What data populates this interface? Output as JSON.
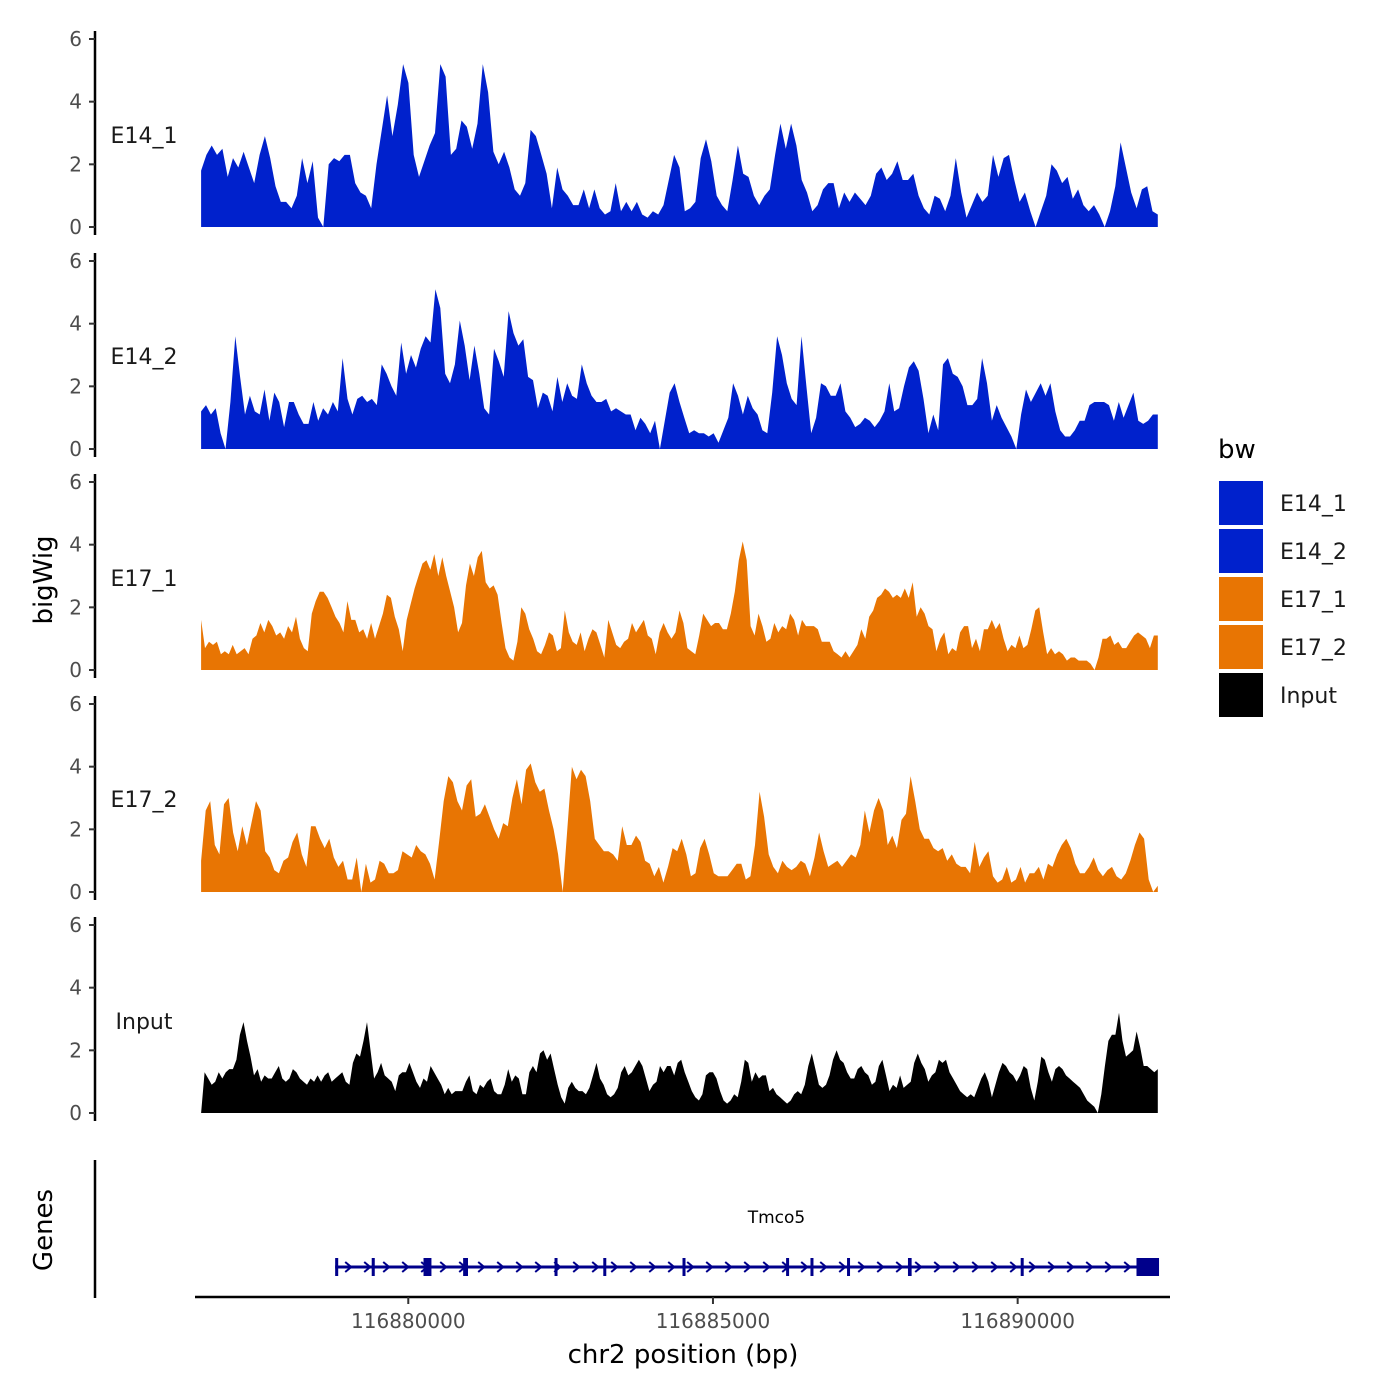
{
  "chart_data": {
    "type": "area",
    "ylabel": "bigWig",
    "xlabel": "chr2 position (bp)",
    "ylim": [
      0,
      6
    ],
    "y_ticks": [
      0,
      2,
      4,
      6
    ],
    "x_range": [
      116876500,
      116892500
    ],
    "x_ticks": [
      {
        "value": 116880000,
        "label": "116880000"
      },
      {
        "value": 116885000,
        "label": "116885000"
      },
      {
        "value": 116890000,
        "label": "116890000"
      }
    ],
    "x_start": 116876600,
    "x_end": 116892300,
    "legend": {
      "title": "bw",
      "position": "right",
      "entries": [
        {
          "label": "E14_1",
          "color": "#0021CC"
        },
        {
          "label": "E14_2",
          "color": "#0021CC"
        },
        {
          "label": "E17_1",
          "color": "#E87503"
        },
        {
          "label": "E17_2",
          "color": "#E87503"
        },
        {
          "label": "Input",
          "color": "#000000"
        }
      ]
    },
    "series": [
      {
        "name": "E14_1",
        "color": "#0021CC",
        "values": [
          1.8,
          2.3,
          2.6,
          2.3,
          2.5,
          1.6,
          2.2,
          1.9,
          2.4,
          1.9,
          1.4,
          2.3,
          2.9,
          2.2,
          1.3,
          0.8,
          0.8,
          0.6,
          1.0,
          2.2,
          1.4,
          2.1,
          0.3,
          0.0,
          2.0,
          2.2,
          2.1,
          2.3,
          2.3,
          1.4,
          1.1,
          1.0,
          0.6,
          2.0,
          3.1,
          4.2,
          2.9,
          3.9,
          5.2,
          4.6,
          2.3,
          1.6,
          2.1,
          2.6,
          3.0,
          5.2,
          4.8,
          2.3,
          2.5,
          3.4,
          3.2,
          2.5,
          3.3,
          5.2,
          4.3,
          2.4,
          2.0,
          2.4,
          1.9,
          1.2,
          1.0,
          1.4,
          3.1,
          2.9,
          2.3,
          1.7,
          0.6,
          1.9,
          1.2,
          1.0,
          0.7,
          0.7,
          1.2,
          0.6,
          1.2,
          0.6,
          0.4,
          0.5,
          1.4,
          0.5,
          0.8,
          0.5,
          0.8,
          0.4,
          0.3,
          0.5,
          0.4,
          0.7,
          1.5,
          2.3,
          1.9,
          0.5,
          0.6,
          0.8,
          2.2,
          2.8,
          2.1,
          1.0,
          0.7,
          0.5,
          1.5,
          2.6,
          1.7,
          1.6,
          1.0,
          0.7,
          1.0,
          1.2,
          2.3,
          3.3,
          2.5,
          3.3,
          2.6,
          1.5,
          1.1,
          0.5,
          0.7,
          1.2,
          1.4,
          1.4,
          0.6,
          1.1,
          0.8,
          1.1,
          0.9,
          0.7,
          1.0,
          1.7,
          1.9,
          1.5,
          1.7,
          2.1,
          1.5,
          1.5,
          1.7,
          1.0,
          0.6,
          0.4,
          1.0,
          0.9,
          0.5,
          1.0,
          2.2,
          1.1,
          0.3,
          0.7,
          1.1,
          0.8,
          1.0,
          2.3,
          1.6,
          2.2,
          2.3,
          1.5,
          0.8,
          1.1,
          0.5,
          0.0,
          0.5,
          1.0,
          2.0,
          1.8,
          1.4,
          1.6,
          0.9,
          1.2,
          0.7,
          0.5,
          0.7,
          0.4,
          0.0,
          0.5,
          1.3,
          2.7,
          1.9,
          1.1,
          0.6,
          1.2,
          1.3,
          0.5,
          0.4
        ]
      },
      {
        "name": "E14_2",
        "color": "#0021CC",
        "values": [
          1.2,
          1.4,
          1.1,
          1.3,
          0.5,
          0.0,
          1.5,
          3.6,
          2.3,
          1.1,
          1.7,
          1.2,
          1.1,
          1.9,
          0.9,
          1.8,
          1.5,
          0.7,
          1.5,
          1.5,
          1.1,
          0.8,
          0.8,
          1.5,
          0.9,
          1.3,
          1.1,
          1.5,
          1.2,
          2.9,
          1.6,
          1.1,
          1.6,
          1.7,
          1.5,
          1.6,
          1.4,
          2.7,
          2.4,
          2.0,
          1.7,
          3.4,
          2.4,
          3.0,
          2.6,
          3.2,
          3.6,
          3.4,
          5.1,
          4.5,
          2.4,
          2.1,
          2.7,
          4.1,
          3.3,
          2.2,
          3.3,
          2.4,
          1.3,
          1.1,
          3.2,
          2.8,
          2.3,
          4.4,
          3.7,
          3.3,
          3.5,
          2.3,
          2.2,
          1.3,
          1.8,
          1.7,
          1.2,
          2.3,
          1.5,
          2.1,
          1.7,
          1.6,
          2.7,
          2.1,
          1.7,
          1.5,
          1.5,
          1.6,
          1.2,
          1.3,
          1.2,
          1.1,
          1.1,
          0.6,
          1.0,
          0.8,
          0.5,
          0.9,
          0.0,
          0.9,
          1.8,
          2.1,
          1.5,
          1.0,
          0.5,
          0.6,
          0.5,
          0.5,
          0.4,
          0.5,
          0.2,
          0.6,
          1.0,
          2.1,
          1.7,
          1.1,
          1.7,
          1.3,
          1.1,
          0.6,
          0.5,
          1.8,
          3.6,
          3.0,
          2.1,
          1.6,
          1.4,
          3.6,
          2.0,
          0.5,
          1.0,
          2.1,
          2.0,
          1.7,
          1.7,
          2.1,
          1.2,
          1.0,
          0.7,
          0.8,
          1.0,
          0.9,
          0.7,
          0.9,
          1.2,
          2.1,
          1.2,
          1.3,
          2.0,
          2.6,
          2.8,
          2.5,
          1.6,
          0.5,
          1.1,
          0.6,
          2.7,
          2.9,
          2.4,
          2.3,
          2.0,
          1.4,
          1.4,
          1.6,
          2.9,
          2.1,
          0.9,
          1.4,
          1.0,
          0.7,
          0.4,
          0.0,
          1.1,
          1.9,
          1.5,
          1.8,
          2.1,
          1.7,
          2.1,
          1.2,
          0.6,
          0.4,
          0.4,
          0.6,
          0.9,
          0.9,
          1.4,
          1.5,
          1.5,
          1.5,
          1.4,
          0.9,
          1.5,
          1.0,
          1.4,
          1.8,
          0.9,
          0.8,
          0.9,
          1.1,
          1.1
        ]
      },
      {
        "name": "E17_1",
        "color": "#E87503",
        "values": [
          1.6,
          0.7,
          0.9,
          0.8,
          0.9,
          0.5,
          0.6,
          0.5,
          0.8,
          0.5,
          0.6,
          0.7,
          0.5,
          1.0,
          1.1,
          1.5,
          1.2,
          1.6,
          1.4,
          1.1,
          1.2,
          1.0,
          1.4,
          1.2,
          1.7,
          1.0,
          0.7,
          0.6,
          1.8,
          2.2,
          2.5,
          2.5,
          2.3,
          2.0,
          1.7,
          1.5,
          1.2,
          2.2,
          1.6,
          1.6,
          1.2,
          1.3,
          1.0,
          1.5,
          1.0,
          1.4,
          1.8,
          2.4,
          2.3,
          1.7,
          1.3,
          0.6,
          1.6,
          2.1,
          2.6,
          3.0,
          3.4,
          3.5,
          3.2,
          3.7,
          3.0,
          3.6,
          3.0,
          2.5,
          2.0,
          1.2,
          1.5,
          2.7,
          3.4,
          3.0,
          3.6,
          3.8,
          2.8,
          2.6,
          2.7,
          2.4,
          1.5,
          0.7,
          0.4,
          0.3,
          0.9,
          2.0,
          1.8,
          1.3,
          1.0,
          0.6,
          0.5,
          0.8,
          1.2,
          1.1,
          0.6,
          0.7,
          1.9,
          1.2,
          0.9,
          0.8,
          1.2,
          0.6,
          1.0,
          1.3,
          1.2,
          0.8,
          0.4,
          1.6,
          1.2,
          0.8,
          0.7,
          0.9,
          1.0,
          1.5,
          1.2,
          1.4,
          1.6,
          1.1,
          1.0,
          0.5,
          1.2,
          1.5,
          1.2,
          1.0,
          1.2,
          1.9,
          1.5,
          0.7,
          0.6,
          0.5,
          1.1,
          1.8,
          1.6,
          1.4,
          1.5,
          1.5,
          1.3,
          1.3,
          1.8,
          2.5,
          3.5,
          4.1,
          3.5,
          1.4,
          1.1,
          1.8,
          1.4,
          0.9,
          1.0,
          1.5,
          1.2,
          1.4,
          1.3,
          1.8,
          1.6,
          1.1,
          1.6,
          1.4,
          1.4,
          1.4,
          1.3,
          0.9,
          0.9,
          0.9,
          0.6,
          0.5,
          0.4,
          0.6,
          0.4,
          0.6,
          0.8,
          1.3,
          1.0,
          1.7,
          1.9,
          2.3,
          2.4,
          2.6,
          2.5,
          2.3,
          2.4,
          2.3,
          2.6,
          2.3,
          2.8,
          1.7,
          2.0,
          1.8,
          1.4,
          1.3,
          0.6,
          1.0,
          1.2,
          0.5,
          0.7,
          0.6,
          1.2,
          1.4,
          1.4,
          0.7,
          1.0,
          0.6,
          1.3,
          1.3,
          1.6,
          1.3,
          1.5,
          1.0,
          0.6,
          0.8,
          0.7,
          1.1,
          0.7,
          0.8,
          1.3,
          1.9,
          2.0,
          1.2,
          0.5,
          0.7,
          0.5,
          0.6,
          0.5,
          0.3,
          0.4,
          0.4,
          0.3,
          0.3,
          0.3,
          0.2,
          0.0,
          0.4,
          1.0,
          1.0,
          1.1,
          0.8,
          0.9,
          0.7,
          0.7,
          0.9,
          1.1,
          1.2,
          1.1,
          1.0,
          0.7,
          1.1,
          1.1
        ]
      },
      {
        "name": "E17_2",
        "color": "#E87503",
        "values": [
          1.0,
          2.6,
          2.9,
          1.5,
          1.2,
          2.8,
          3.0,
          1.9,
          1.3,
          2.1,
          1.5,
          2.2,
          2.9,
          2.6,
          1.3,
          1.1,
          0.7,
          0.6,
          1.0,
          1.1,
          1.6,
          1.9,
          1.2,
          0.8,
          2.1,
          2.1,
          1.7,
          1.4,
          1.7,
          1.1,
          0.8,
          1.0,
          0.4,
          0.4,
          1.1,
          0.0,
          0.9,
          0.3,
          0.4,
          1.0,
          0.9,
          0.6,
          0.6,
          0.7,
          1.3,
          1.2,
          1.1,
          1.5,
          1.3,
          1.2,
          0.9,
          0.4,
          1.6,
          2.9,
          3.7,
          3.5,
          2.9,
          2.6,
          3.4,
          3.6,
          2.4,
          2.5,
          2.8,
          2.4,
          2.0,
          1.7,
          2.2,
          2.1,
          3.0,
          3.6,
          2.8,
          3.9,
          4.1,
          3.5,
          3.2,
          3.3,
          2.6,
          2.0,
          1.2,
          0.0,
          2.0,
          4.0,
          3.6,
          3.9,
          3.7,
          2.9,
          1.7,
          1.5,
          1.3,
          1.3,
          1.2,
          1.0,
          2.1,
          1.5,
          1.5,
          1.8,
          1.6,
          1.0,
          0.9,
          0.5,
          0.8,
          0.3,
          0.8,
          1.4,
          1.3,
          1.7,
          1.2,
          0.5,
          0.6,
          1.4,
          1.7,
          1.2,
          0.6,
          0.5,
          0.5,
          0.5,
          0.7,
          0.9,
          0.9,
          0.4,
          0.5,
          1.5,
          3.2,
          2.4,
          1.2,
          0.8,
          0.6,
          1.0,
          0.8,
          0.7,
          0.8,
          1.0,
          0.9,
          0.5,
          1.1,
          1.9,
          1.3,
          0.8,
          0.9,
          1.0,
          0.8,
          1.0,
          1.2,
          1.1,
          1.5,
          2.6,
          1.9,
          2.6,
          3.0,
          2.6,
          1.5,
          1.8,
          1.4,
          2.3,
          2.5,
          3.7,
          2.9,
          2.0,
          1.7,
          1.7,
          1.4,
          1.3,
          1.4,
          1.0,
          1.2,
          0.9,
          0.8,
          0.8,
          0.6,
          1.6,
          0.8,
          1.1,
          1.3,
          0.5,
          0.3,
          0.4,
          0.8,
          0.3,
          0.4,
          0.8,
          0.3,
          0.6,
          0.6,
          0.8,
          0.4,
          0.9,
          0.8,
          1.2,
          1.5,
          1.7,
          1.4,
          0.9,
          0.6,
          0.6,
          0.8,
          1.1,
          0.7,
          0.5,
          0.7,
          0.8,
          0.5,
          0.4,
          0.6,
          1.0,
          1.5,
          1.9,
          1.7,
          0.4,
          0.0,
          0.2
        ]
      },
      {
        "name": "Input",
        "color": "#000000",
        "values": [
          0.0,
          1.3,
          1.1,
          0.9,
          1.0,
          1.3,
          1.1,
          1.3,
          1.4,
          1.4,
          1.7,
          2.5,
          2.9,
          2.3,
          1.8,
          1.2,
          1.4,
          1.0,
          1.2,
          1.1,
          1.1,
          1.3,
          1.5,
          1.1,
          1.0,
          1.1,
          1.4,
          1.3,
          1.1,
          1.0,
          0.9,
          1.1,
          1.0,
          1.2,
          1.0,
          1.2,
          1.3,
          1.0,
          1.1,
          1.2,
          1.3,
          1.0,
          0.9,
          1.6,
          1.9,
          1.8,
          2.3,
          2.9,
          2.0,
          1.1,
          1.3,
          1.6,
          1.2,
          1.1,
          1.0,
          0.7,
          1.2,
          1.3,
          1.3,
          1.6,
          1.3,
          1.0,
          0.8,
          1.1,
          1.0,
          1.5,
          1.3,
          1.1,
          0.9,
          0.6,
          0.8,
          0.6,
          0.7,
          0.7,
          0.7,
          1.0,
          1.2,
          0.7,
          0.6,
          0.9,
          0.8,
          1.0,
          1.1,
          0.7,
          0.6,
          0.6,
          0.9,
          1.4,
          1.0,
          1.2,
          1.1,
          0.6,
          0.6,
          1.3,
          1.5,
          1.3,
          1.9,
          2.0,
          1.7,
          1.9,
          1.4,
          0.9,
          0.5,
          0.3,
          0.8,
          1.0,
          0.8,
          0.7,
          0.7,
          0.6,
          0.8,
          1.2,
          1.6,
          1.1,
          0.9,
          0.6,
          0.5,
          0.6,
          0.8,
          1.3,
          1.5,
          1.2,
          1.3,
          1.5,
          1.7,
          1.5,
          1.1,
          0.7,
          0.9,
          1.0,
          1.5,
          1.3,
          1.5,
          1.5,
          1.2,
          1.6,
          1.7,
          1.3,
          1.0,
          0.7,
          0.5,
          0.4,
          0.6,
          1.2,
          1.3,
          1.3,
          1.1,
          0.7,
          0.4,
          0.3,
          0.4,
          0.6,
          0.5,
          1.0,
          1.7,
          1.6,
          1.0,
          1.3,
          1.1,
          1.2,
          1.2,
          0.7,
          0.8,
          0.6,
          0.5,
          0.4,
          0.3,
          0.4,
          0.6,
          0.7,
          0.6,
          0.9,
          1.5,
          1.9,
          1.4,
          0.9,
          0.8,
          0.9,
          1.2,
          1.7,
          2.0,
          1.7,
          1.6,
          1.3,
          1.1,
          1.1,
          1.4,
          1.5,
          1.3,
          1.2,
          0.9,
          1.0,
          1.5,
          1.7,
          1.2,
          0.7,
          0.9,
          0.8,
          1.2,
          0.8,
          0.9,
          1.0,
          1.6,
          1.9,
          1.6,
          1.4,
          1.0,
          1.2,
          1.3,
          1.7,
          1.6,
          1.7,
          1.3,
          1.1,
          0.9,
          0.7,
          0.6,
          0.5,
          0.6,
          0.5,
          0.8,
          1.1,
          1.3,
          1.0,
          0.5,
          0.9,
          1.3,
          1.6,
          1.5,
          1.3,
          1.2,
          1.0,
          1.2,
          1.5,
          1.4,
          0.8,
          0.4,
          1.0,
          1.8,
          1.7,
          1.3,
          1.0,
          1.4,
          1.5,
          1.4,
          1.2,
          1.1,
          1.0,
          0.9,
          0.8,
          0.6,
          0.4,
          0.3,
          0.2,
          0.0,
          0.6,
          1.5,
          2.3,
          2.5,
          2.5,
          3.2,
          2.3,
          1.8,
          1.9,
          2.0,
          2.6,
          2.1,
          1.5,
          1.5,
          1.4,
          1.3,
          1.4
        ]
      }
    ],
    "gene": {
      "name": "Tmco5",
      "color": "#00008B",
      "start": 116878800,
      "end": 116892300,
      "exons": [
        {
          "start": 116878800,
          "end": 116878850
        },
        {
          "start": 116879400,
          "end": 116879450
        },
        {
          "start": 116880250,
          "end": 116880380
        },
        {
          "start": 116880900,
          "end": 116880980
        },
        {
          "start": 116882400,
          "end": 116882440
        },
        {
          "start": 116883200,
          "end": 116883240
        },
        {
          "start": 116884500,
          "end": 116884540
        },
        {
          "start": 116886200,
          "end": 116886240
        },
        {
          "start": 116886600,
          "end": 116886640
        },
        {
          "start": 116887200,
          "end": 116887240
        },
        {
          "start": 116888200,
          "end": 116888260
        },
        {
          "start": 116890050,
          "end": 116890090
        },
        {
          "start": 116891950,
          "end": 116892320
        }
      ]
    },
    "track_panel_label": "Genes"
  }
}
